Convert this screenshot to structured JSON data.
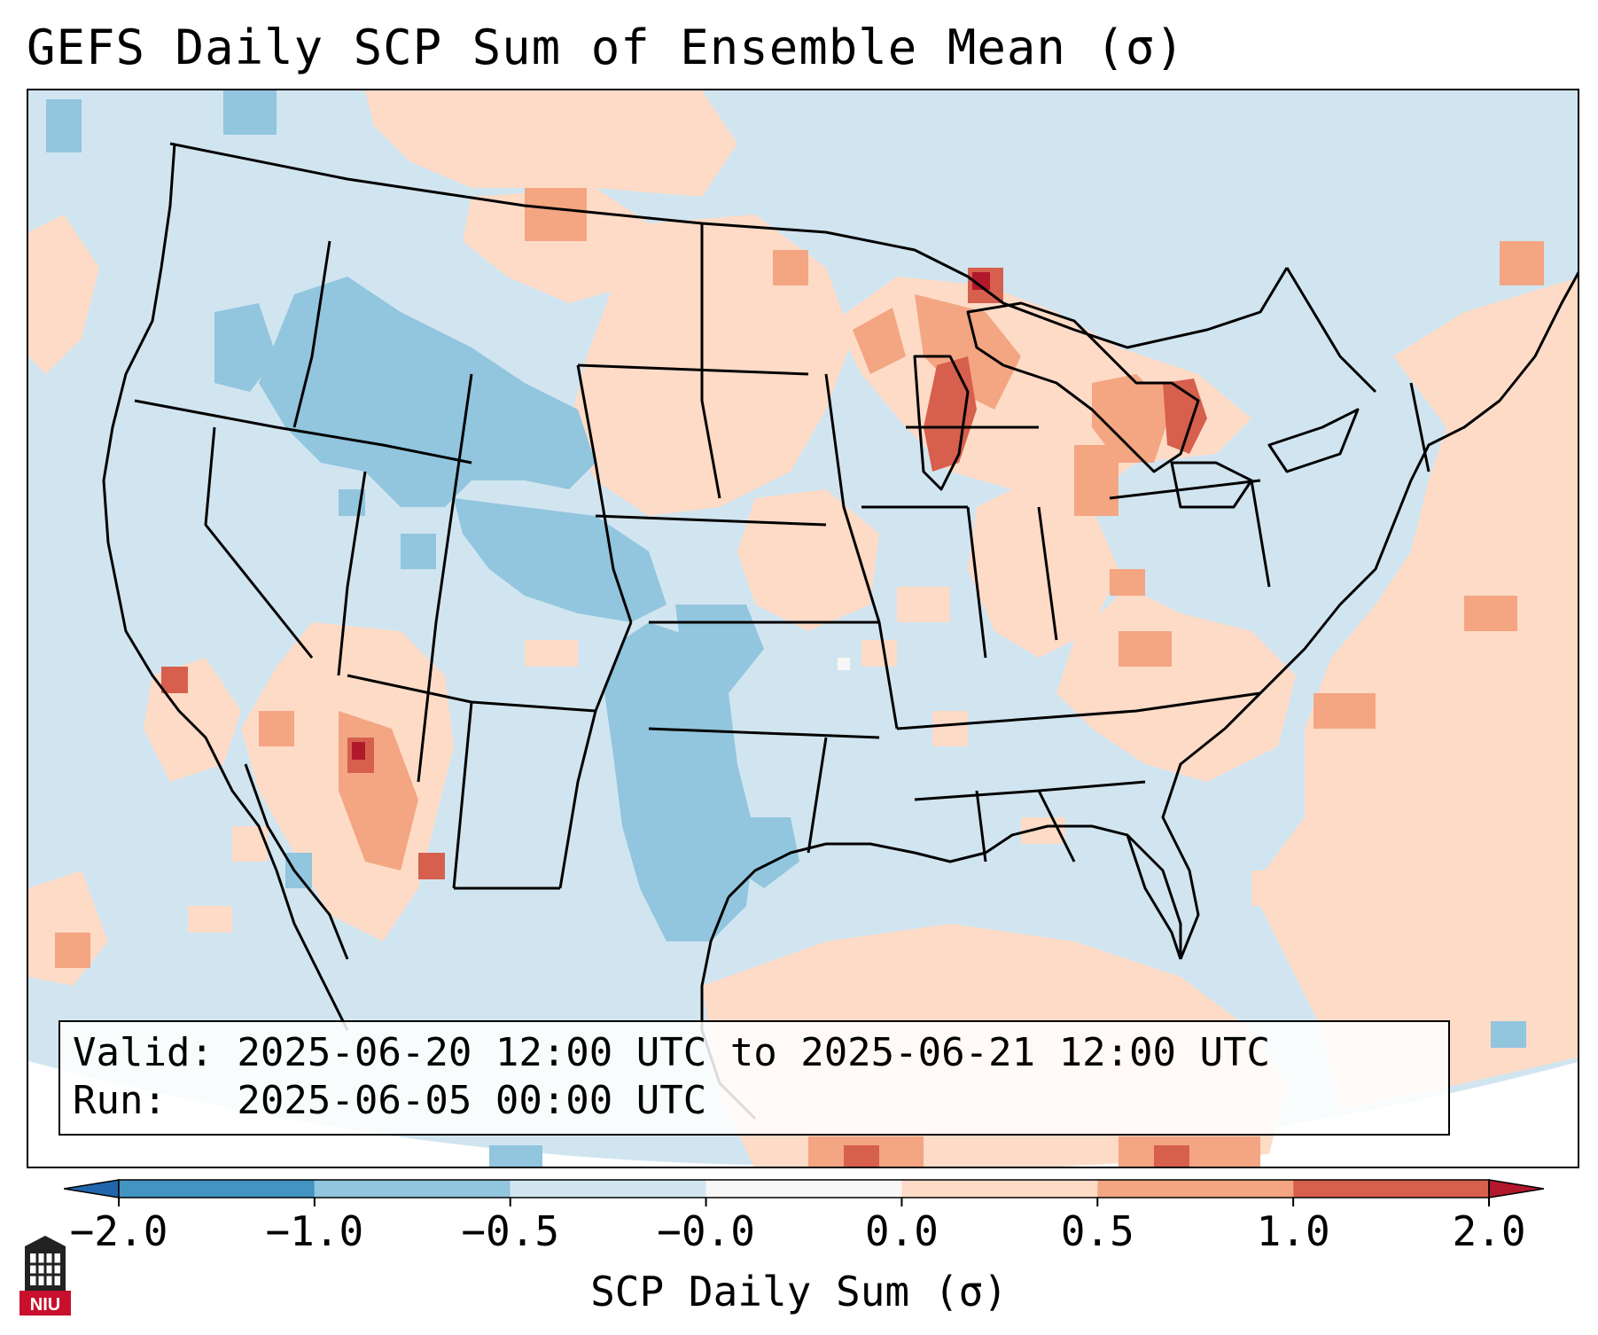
{
  "title": "GEFS Daily SCP Sum of Ensemble Mean (σ)",
  "info": {
    "valid": "Valid: 2025-06-20 12:00 UTC to 2025-06-21 12:00 UTC",
    "run": "Run:   2025-06-05 00:00 UTC"
  },
  "colorbar": {
    "label": "SCP Daily Sum (σ)",
    "ticks": [
      "−2.0",
      "−1.0",
      "−0.5",
      "−0.0",
      "0.0",
      "0.5",
      "1.0",
      "2.0"
    ],
    "bins": [
      {
        "from": -2.0,
        "to": -1.0,
        "color": "#4393c3"
      },
      {
        "from": -1.0,
        "to": -0.5,
        "color": "#92c5de"
      },
      {
        "from": -0.5,
        "to": -0.0,
        "color": "#d1e5f0"
      },
      {
        "from": -0.0,
        "to": 0.0,
        "color": "#f7f7f7"
      },
      {
        "from": 0.0,
        "to": 0.5,
        "color": "#fddbc7"
      },
      {
        "from": 0.5,
        "to": 1.0,
        "color": "#f4a582"
      },
      {
        "from": 1.0,
        "to": 2.0,
        "color": "#d6604d"
      }
    ],
    "under_color": "#2166ac",
    "over_color": "#b2182b"
  },
  "map": {
    "background": "#d1e5f0",
    "outside_projection": "#ffffff",
    "border_color": "#000000"
  },
  "logo": {
    "text": "NIU",
    "color": "#c8102e"
  }
}
